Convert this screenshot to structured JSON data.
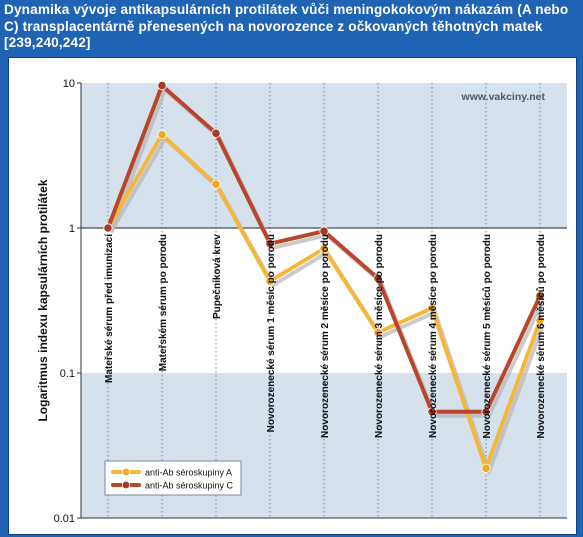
{
  "title": "Dynamika vývoje antikapsulárních protilátek vůči meningokokovým nákazám (A nebo C) transplacentárně přenesených na novorozence z očkovaných těhotných matek [239,240,242]",
  "watermark": "www.vakciny.net",
  "colors": {
    "background": "#1f64b4",
    "plot_band": "#d6e1ee",
    "series_a_line": "#f5b73a",
    "series_a_marker": "#f2a81e",
    "series_c_line": "#b8462a",
    "series_c_marker": "#a33c22",
    "shadow": "#b5b5b5"
  },
  "chart_data": {
    "type": "line",
    "scale_y": "log",
    "ylim": [
      0.01,
      10
    ],
    "yticks": [
      "10",
      "1",
      "0.1",
      "0.01"
    ],
    "ytick_values": [
      10,
      1,
      0.1,
      0.01
    ],
    "ylabel": "Logaritmus indexu kapsulárních protilátek",
    "grid": "vertical dashed lines at each category",
    "categories": [
      "Mateřské sérum před imunizací",
      "Mateřském sérum po porodu",
      "Pupečníková krev",
      "Novorozenecké sérum 1 měsíc po porodu",
      "Novorozenecké sérum 2 měsíce po porodu",
      "Novorozenecké sérum 3 měsíce po porodu",
      "Novorozenecké sérum 4 měsíce po porodu",
      "Novorozenecké sérum 5 měsíců po porodu",
      "Novorozenecké sérum 6 měsíců po porodu"
    ],
    "series": [
      {
        "name": "anti-Ab séroskupiny A",
        "color": "#f2a81e",
        "values": [
          1.0,
          4.4,
          2.0,
          0.43,
          0.72,
          0.19,
          0.28,
          0.022,
          0.23
        ]
      },
      {
        "name": "anti-Ab séroskupiny C",
        "color": "#a33c22",
        "values": [
          1.0,
          9.6,
          4.5,
          0.78,
          0.95,
          0.45,
          0.054,
          0.054,
          0.34
        ]
      }
    ],
    "legend_position": "bottom-left"
  }
}
